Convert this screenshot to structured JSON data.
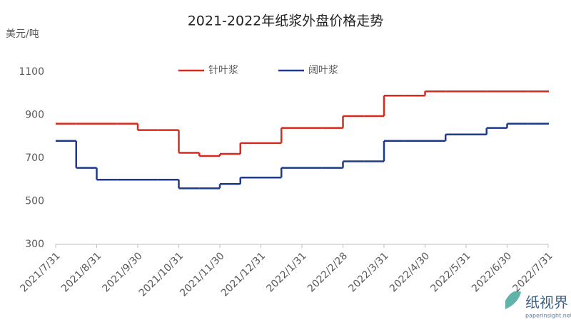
{
  "chart_data": {
    "type": "line",
    "title": "2021-2022年纸浆外盘价格走势",
    "y_label": "美元/吨",
    "categories": [
      "2021/7/31",
      null,
      "2021/8/31",
      null,
      "2021/9/30",
      null,
      "2021/10/31",
      null,
      "2021/11/30",
      null,
      "2021/12/31",
      null,
      "2022/1/31",
      null,
      "2022/2/28",
      null,
      "2022/3/31",
      null,
      "2022/4/30",
      null,
      "2022/5/31",
      null,
      "2022/6/30",
      null,
      "2022/7/31"
    ],
    "series": [
      {
        "name": "针叶浆",
        "color": "#d62a1e",
        "values": [
          860,
          860,
          860,
          860,
          830,
          830,
          725,
          710,
          720,
          770,
          770,
          840,
          840,
          840,
          895,
          895,
          990,
          990,
          1010,
          1010,
          1010,
          1010,
          1010,
          1010,
          1010
        ]
      },
      {
        "name": "阔叶浆",
        "color": "#1c3a8c",
        "values": [
          780,
          655,
          600,
          600,
          600,
          600,
          560,
          560,
          580,
          610,
          610,
          655,
          655,
          655,
          685,
          685,
          780,
          780,
          780,
          810,
          810,
          840,
          860,
          860,
          860
        ]
      }
    ],
    "ylim": [
      300,
      1100
    ],
    "yticks": [
      300,
      500,
      700,
      900,
      1100
    ],
    "grid": false,
    "legend": "top",
    "watermark": {
      "name": "纸视界",
      "site": "paperinsight.net"
    }
  }
}
